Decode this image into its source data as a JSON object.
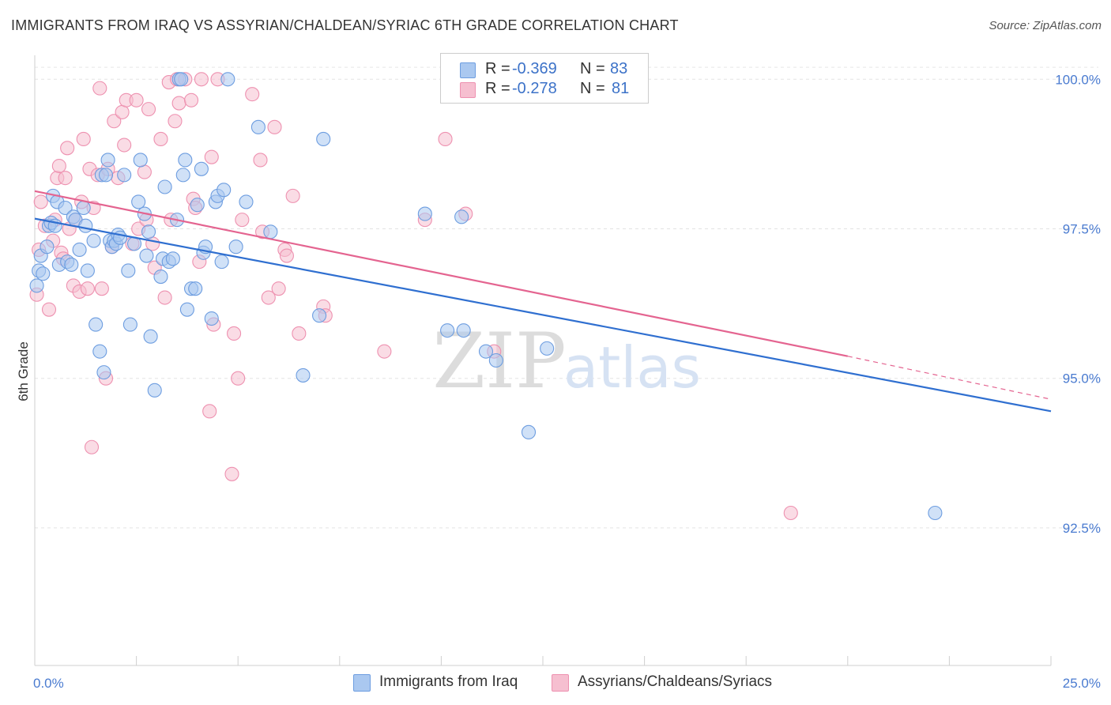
{
  "header": {
    "title": "IMMIGRANTS FROM IRAQ VS ASSYRIAN/CHALDEAN/SYRIAC 6TH GRADE CORRELATION CHART",
    "source": "Source: ZipAtlas.com"
  },
  "watermark": {
    "zip": "ZIP",
    "atlas": "atlas"
  },
  "stats": {
    "r_label": "R =",
    "n_label": "N =",
    "series1": {
      "r": "-0.369",
      "n": "83"
    },
    "series2": {
      "r": "-0.278",
      "n": "81"
    }
  },
  "colors": {
    "series1_fill": "#aac8f0",
    "series1_stroke": "#6d9de0",
    "series1_line": "#2f6fd0",
    "series2_fill": "#f6bfd0",
    "series2_stroke": "#ee91b0",
    "series2_line": "#e46490",
    "tick_label": "#4a7bd0"
  },
  "chart_data": {
    "type": "scatter",
    "title": "IMMIGRANTS FROM IRAQ VS ASSYRIAN/CHALDEAN/SYRIAC 6TH GRADE CORRELATION CHART",
    "xlabel": "",
    "ylabel": "6th Grade",
    "xlim": [
      0,
      25
    ],
    "ylim": [
      90.2,
      100.4
    ],
    "x_tick_labels": [
      {
        "value": 0,
        "label": "0.0%"
      },
      {
        "value": 25,
        "label": "25.0%"
      }
    ],
    "y_ticks": [
      {
        "value": 100.0,
        "label": "100.0%"
      },
      {
        "value": 97.5,
        "label": "97.5%"
      },
      {
        "value": 95.0,
        "label": "95.0%"
      },
      {
        "value": 92.5,
        "label": "92.5%"
      }
    ],
    "x_minor_ticks": [
      0,
      2.5,
      5,
      7.5,
      10,
      12.5,
      15,
      17.5,
      20,
      22.5,
      25
    ],
    "grid": true,
    "legend_position": "bottom-center",
    "series": [
      {
        "name": "Immigrants from Iraq",
        "r": -0.369,
        "n": 83,
        "trend": {
          "x0": 0,
          "y0": 97.67,
          "x1": 25,
          "y1": 94.45
        },
        "points": [
          [
            0.05,
            96.55
          ],
          [
            0.1,
            96.8
          ],
          [
            0.15,
            97.05
          ],
          [
            0.2,
            96.75
          ],
          [
            0.3,
            97.2
          ],
          [
            0.35,
            97.55
          ],
          [
            0.4,
            97.6
          ],
          [
            0.45,
            98.05
          ],
          [
            0.5,
            97.55
          ],
          [
            0.55,
            97.95
          ],
          [
            0.6,
            96.9
          ],
          [
            0.75,
            97.85
          ],
          [
            0.8,
            96.95
          ],
          [
            0.9,
            96.9
          ],
          [
            0.95,
            97.7
          ],
          [
            1.0,
            97.65
          ],
          [
            1.1,
            97.15
          ],
          [
            1.2,
            97.85
          ],
          [
            1.25,
            97.55
          ],
          [
            1.3,
            96.8
          ],
          [
            1.45,
            97.3
          ],
          [
            1.5,
            95.9
          ],
          [
            1.6,
            95.45
          ],
          [
            1.65,
            98.4
          ],
          [
            1.7,
            95.1
          ],
          [
            1.75,
            98.4
          ],
          [
            1.8,
            98.65
          ],
          [
            1.85,
            97.3
          ],
          [
            1.9,
            97.2
          ],
          [
            1.95,
            97.3
          ],
          [
            2.0,
            97.25
          ],
          [
            2.05,
            97.4
          ],
          [
            2.1,
            97.35
          ],
          [
            2.2,
            98.4
          ],
          [
            2.3,
            96.8
          ],
          [
            2.35,
            95.9
          ],
          [
            2.45,
            97.25
          ],
          [
            2.55,
            97.95
          ],
          [
            2.6,
            98.65
          ],
          [
            2.7,
            97.75
          ],
          [
            2.75,
            97.05
          ],
          [
            2.8,
            97.45
          ],
          [
            2.85,
            95.7
          ],
          [
            2.95,
            94.8
          ],
          [
            3.1,
            96.7
          ],
          [
            3.15,
            97.0
          ],
          [
            3.2,
            98.2
          ],
          [
            3.3,
            96.95
          ],
          [
            3.4,
            97.0
          ],
          [
            3.5,
            97.65
          ],
          [
            3.55,
            100.0
          ],
          [
            3.6,
            100.0
          ],
          [
            3.65,
            98.4
          ],
          [
            3.7,
            98.65
          ],
          [
            3.75,
            96.15
          ],
          [
            3.85,
            96.5
          ],
          [
            3.95,
            96.5
          ],
          [
            4.0,
            97.9
          ],
          [
            4.1,
            98.5
          ],
          [
            4.15,
            97.1
          ],
          [
            4.2,
            97.2
          ],
          [
            4.35,
            96.0
          ],
          [
            4.45,
            97.95
          ],
          [
            4.5,
            98.05
          ],
          [
            4.6,
            96.95
          ],
          [
            4.65,
            98.15
          ],
          [
            4.75,
            100.0
          ],
          [
            4.95,
            97.2
          ],
          [
            5.2,
            97.95
          ],
          [
            5.5,
            99.2
          ],
          [
            5.8,
            97.45
          ],
          [
            6.6,
            95.05
          ],
          [
            7.0,
            96.05
          ],
          [
            7.1,
            99.0
          ],
          [
            9.6,
            97.75
          ],
          [
            10.15,
            95.8
          ],
          [
            10.5,
            97.7
          ],
          [
            10.55,
            95.8
          ],
          [
            11.1,
            95.45
          ],
          [
            11.35,
            95.3
          ],
          [
            12.15,
            94.1
          ],
          [
            12.6,
            95.5
          ],
          [
            22.15,
            92.75
          ]
        ]
      },
      {
        "name": "Assyrians/Chaldeans/Syriacs",
        "r": -0.278,
        "n": 81,
        "trend": {
          "x0": 0,
          "y0": 98.13,
          "x1": 20.0,
          "y1": 95.37,
          "dash_to": {
            "x": 25,
            "y": 94.65
          }
        },
        "points": [
          [
            0.05,
            96.4
          ],
          [
            0.1,
            97.15
          ],
          [
            0.15,
            97.95
          ],
          [
            0.25,
            97.55
          ],
          [
            0.35,
            96.15
          ],
          [
            0.45,
            97.3
          ],
          [
            0.5,
            97.65
          ],
          [
            0.55,
            98.35
          ],
          [
            0.6,
            98.55
          ],
          [
            0.65,
            97.1
          ],
          [
            0.7,
            97.0
          ],
          [
            0.75,
            98.35
          ],
          [
            0.8,
            98.85
          ],
          [
            0.85,
            97.5
          ],
          [
            0.95,
            96.55
          ],
          [
            1.0,
            97.65
          ],
          [
            1.1,
            96.45
          ],
          [
            1.15,
            97.95
          ],
          [
            1.2,
            99.0
          ],
          [
            1.3,
            96.5
          ],
          [
            1.35,
            98.5
          ],
          [
            1.4,
            93.85
          ],
          [
            1.45,
            97.85
          ],
          [
            1.55,
            98.4
          ],
          [
            1.6,
            99.85
          ],
          [
            1.65,
            96.5
          ],
          [
            1.75,
            95.0
          ],
          [
            1.8,
            98.5
          ],
          [
            1.9,
            97.2
          ],
          [
            1.95,
            99.3
          ],
          [
            2.05,
            98.35
          ],
          [
            2.15,
            99.45
          ],
          [
            2.2,
            98.9
          ],
          [
            2.25,
            99.65
          ],
          [
            2.4,
            97.25
          ],
          [
            2.5,
            99.65
          ],
          [
            2.55,
            97.5
          ],
          [
            2.7,
            98.45
          ],
          [
            2.75,
            97.65
          ],
          [
            2.8,
            99.5
          ],
          [
            2.9,
            97.25
          ],
          [
            2.95,
            96.85
          ],
          [
            3.1,
            99.0
          ],
          [
            3.2,
            96.35
          ],
          [
            3.3,
            99.95
          ],
          [
            3.35,
            97.65
          ],
          [
            3.45,
            99.3
          ],
          [
            3.5,
            100.0
          ],
          [
            3.55,
            99.6
          ],
          [
            3.7,
            100.0
          ],
          [
            3.85,
            99.65
          ],
          [
            3.9,
            98.0
          ],
          [
            3.95,
            97.85
          ],
          [
            4.05,
            96.95
          ],
          [
            4.1,
            100.0
          ],
          [
            4.3,
            94.45
          ],
          [
            4.35,
            98.7
          ],
          [
            4.4,
            95.9
          ],
          [
            4.5,
            100.0
          ],
          [
            4.85,
            93.4
          ],
          [
            4.9,
            95.75
          ],
          [
            5.0,
            95.0
          ],
          [
            5.1,
            97.65
          ],
          [
            5.35,
            99.75
          ],
          [
            5.55,
            98.65
          ],
          [
            5.6,
            97.45
          ],
          [
            5.75,
            96.35
          ],
          [
            5.9,
            99.2
          ],
          [
            6.0,
            96.5
          ],
          [
            6.15,
            97.15
          ],
          [
            6.2,
            97.05
          ],
          [
            6.35,
            98.05
          ],
          [
            6.5,
            95.75
          ],
          [
            7.1,
            96.2
          ],
          [
            7.15,
            96.05
          ],
          [
            8.6,
            95.45
          ],
          [
            9.6,
            97.65
          ],
          [
            10.1,
            99.0
          ],
          [
            10.6,
            97.75
          ],
          [
            11.3,
            95.45
          ],
          [
            18.6,
            92.75
          ]
        ]
      }
    ]
  }
}
